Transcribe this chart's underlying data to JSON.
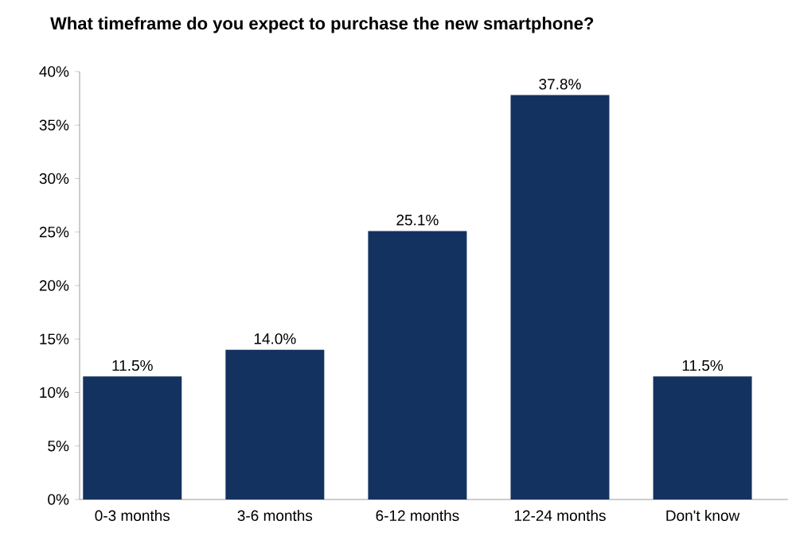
{
  "chart_data": {
    "type": "bar",
    "title": "What timeframe do you expect to purchase the new smartphone?",
    "categories": [
      "0-3 months",
      "3-6 months",
      "6-12 months",
      "12-24 months",
      "Don't know"
    ],
    "values": [
      11.5,
      14.0,
      25.1,
      37.8,
      11.5
    ],
    "value_labels": [
      "11.5%",
      "14.0%",
      "25.1%",
      "37.8%",
      "11.5%"
    ],
    "color": "#13325f",
    "ylim": [
      0,
      40
    ],
    "yticks": [
      {
        "value": 0,
        "label": "0%"
      },
      {
        "value": 5,
        "label": "5%"
      },
      {
        "value": 10,
        "label": "10%"
      },
      {
        "value": 15,
        "label": "15%"
      },
      {
        "value": 20,
        "label": "20%"
      },
      {
        "value": 25,
        "label": "25%"
      },
      {
        "value": 30,
        "label": "30%"
      },
      {
        "value": 35,
        "label": "35%"
      },
      {
        "value": 40,
        "label": "40%"
      }
    ],
    "grid": false
  }
}
